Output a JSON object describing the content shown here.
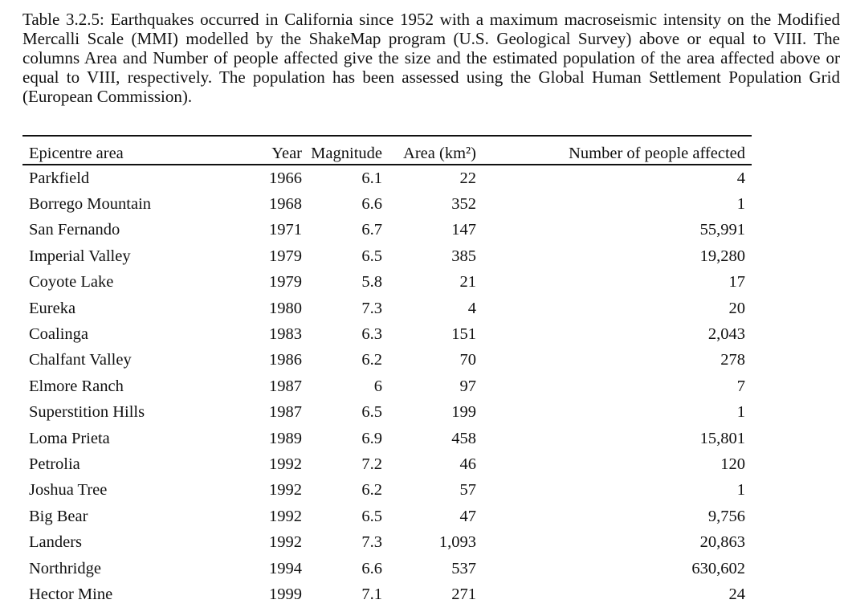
{
  "caption": "Table 3.2.5: Earthquakes occurred in California since 1952 with a maximum macroseismic intensity on the Modified Mercalli Scale (MMI) modelled by the ShakeMap program (U.S. Geological Survey) above or equal to VIII. The columns Area and Number of people affected give the size and the estimated population of the area affected above or equal to VIII, respectively. The population has been assessed using the Global Human Settlement Population Grid (European Commission).",
  "table": {
    "headers": [
      "Epicentre area",
      "Year",
      "Magnitude",
      "Area (km²)",
      "Number of people affected"
    ],
    "rows": [
      [
        "Parkfield",
        "1966",
        "6.1",
        "22",
        "4"
      ],
      [
        "Borrego Mountain",
        "1968",
        "6.6",
        "352",
        "1"
      ],
      [
        "San Fernando",
        "1971",
        "6.7",
        "147",
        "55,991"
      ],
      [
        "Imperial Valley",
        "1979",
        "6.5",
        "385",
        "19,280"
      ],
      [
        "Coyote Lake",
        "1979",
        "5.8",
        "21",
        "17"
      ],
      [
        "Eureka",
        "1980",
        "7.3",
        "4",
        "20"
      ],
      [
        "Coalinga",
        "1983",
        "6.3",
        "151",
        "2,043"
      ],
      [
        "Chalfant Valley",
        "1986",
        "6.2",
        "70",
        "278"
      ],
      [
        "Elmore Ranch",
        "1987",
        "6",
        "97",
        "7"
      ],
      [
        "Superstition Hills",
        "1987",
        "6.5",
        "199",
        "1"
      ],
      [
        "Loma Prieta",
        "1989",
        "6.9",
        "458",
        "15,801"
      ],
      [
        "Petrolia",
        "1992",
        "7.2",
        "46",
        "120"
      ],
      [
        "Joshua Tree",
        "1992",
        "6.2",
        "57",
        "1"
      ],
      [
        "Big Bear",
        "1992",
        "6.5",
        "47",
        "9,756"
      ],
      [
        "Landers",
        "1992",
        "7.3",
        "1,093",
        "20,863"
      ],
      [
        "Northridge",
        "1994",
        "6.6",
        "537",
        "630,602"
      ],
      [
        "Hector Mine",
        "1999",
        "7.1",
        "271",
        "24"
      ]
    ]
  }
}
